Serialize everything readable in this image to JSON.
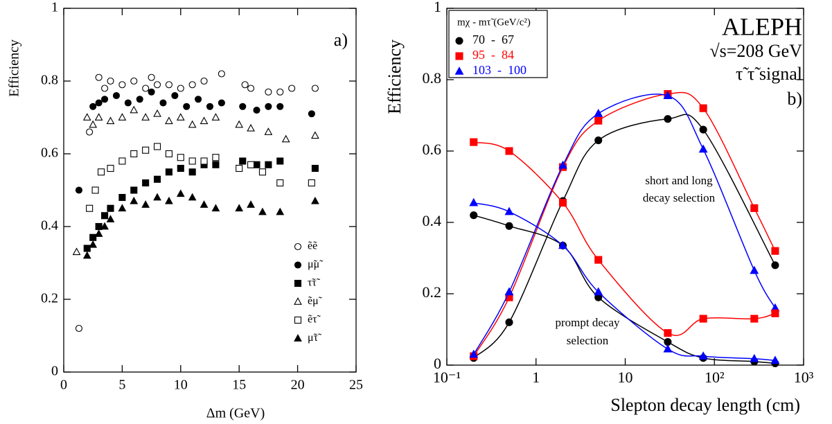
{
  "chart_data": [
    {
      "type": "scatter",
      "xlabel": "Δm (GeV)",
      "ylabel": "Efficiency",
      "panel_label": "a)",
      "xlim": [
        0,
        25
      ],
      "xticks": [
        0,
        5,
        10,
        15,
        20,
        25
      ],
      "ylim": [
        0,
        1
      ],
      "yticks": [
        0,
        0.2,
        0.4,
        0.6,
        0.8,
        1
      ],
      "series": [
        {
          "name": "ẽẽ",
          "marker": "circle",
          "filled": false,
          "color": "#000000",
          "x": [
            1.3,
            2.2,
            3,
            3.5,
            4,
            5,
            6,
            7,
            7.5,
            8,
            9,
            10,
            11,
            12,
            13.5,
            15.5,
            16,
            17.5,
            18.5,
            19.5,
            21.5
          ],
          "values": [
            0.12,
            0.66,
            0.81,
            0.78,
            0.8,
            0.79,
            0.8,
            0.78,
            0.81,
            0.79,
            0.79,
            0.78,
            0.79,
            0.8,
            0.82,
            0.79,
            0.78,
            0.77,
            0.77,
            0.78,
            0.78
          ]
        },
        {
          "name": "μ̃μ̃",
          "marker": "circle",
          "filled": true,
          "color": "#000000",
          "x": [
            1.3,
            2.5,
            3,
            3.5,
            4.5,
            5.5,
            6.5,
            7.5,
            8.5,
            9.5,
            10.5,
            11.5,
            12.5,
            13.5,
            15.3,
            16.5,
            17.5,
            18.5,
            21.2
          ],
          "values": [
            0.5,
            0.73,
            0.74,
            0.75,
            0.76,
            0.74,
            0.75,
            0.77,
            0.74,
            0.76,
            0.73,
            0.75,
            0.73,
            0.74,
            0.73,
            0.72,
            0.73,
            0.73,
            0.71
          ]
        },
        {
          "name": "τ̃τ̃",
          "marker": "square",
          "filled": true,
          "color": "#000000",
          "x": [
            2,
            2.5,
            3,
            3.5,
            4,
            5,
            6,
            7,
            8,
            9,
            10,
            11,
            12,
            13,
            15.3,
            16.5,
            17.5,
            18.5,
            21.5
          ],
          "values": [
            0.34,
            0.37,
            0.4,
            0.43,
            0.45,
            0.48,
            0.5,
            0.52,
            0.53,
            0.55,
            0.56,
            0.55,
            0.57,
            0.57,
            0.58,
            0.57,
            0.57,
            0.58,
            0.56
          ]
        },
        {
          "name": "ẽμ̃",
          "marker": "triangle",
          "filled": false,
          "color": "#000000",
          "x": [
            1.1,
            2,
            2.5,
            3,
            4,
            5,
            6,
            7,
            8,
            9,
            10,
            11,
            12,
            13,
            15,
            16,
            17.5,
            19,
            21.5
          ],
          "values": [
            0.33,
            0.7,
            0.68,
            0.7,
            0.69,
            0.7,
            0.72,
            0.7,
            0.71,
            0.69,
            0.7,
            0.68,
            0.69,
            0.7,
            0.68,
            0.67,
            0.66,
            0.64,
            0.65
          ]
        },
        {
          "name": "ẽτ̃",
          "marker": "square",
          "filled": false,
          "color": "#000000",
          "x": [
            2.2,
            2.7,
            3.2,
            4,
            5,
            6,
            7,
            8,
            9,
            10,
            11,
            12,
            13,
            15,
            16,
            17,
            18.5,
            21.2
          ],
          "values": [
            0.45,
            0.5,
            0.55,
            0.56,
            0.58,
            0.6,
            0.61,
            0.62,
            0.6,
            0.59,
            0.58,
            0.58,
            0.59,
            0.56,
            0.57,
            0.55,
            0.52,
            0.52
          ]
        },
        {
          "name": "μ̃τ̃",
          "marker": "triangle",
          "filled": true,
          "color": "#000000",
          "x": [
            2,
            2.5,
            3,
            3.5,
            4,
            5,
            6,
            7,
            8,
            9,
            10,
            11,
            12,
            13,
            15,
            16,
            17,
            18.5,
            21.5
          ],
          "values": [
            0.32,
            0.35,
            0.38,
            0.4,
            0.42,
            0.45,
            0.47,
            0.46,
            0.48,
            0.47,
            0.49,
            0.48,
            0.46,
            0.45,
            0.45,
            0.46,
            0.44,
            0.44,
            0.47
          ]
        }
      ]
    },
    {
      "type": "line",
      "xlabel": "Slepton decay length (cm)",
      "ylabel": "Efficiency",
      "log_x": true,
      "xlim": [
        0.1,
        1000
      ],
      "xticks": [
        {
          "value": 0.1,
          "label": "10⁻¹"
        },
        1,
        10,
        {
          "value": 100,
          "label": "10²"
        },
        {
          "value": 1000,
          "label": "10³"
        }
      ],
      "ylim": [
        0,
        1
      ],
      "yticks": [
        0,
        0.2,
        0.4,
        0.6,
        0.8,
        1
      ],
      "legend_title": "mχ  -  mτ̃  (GeV/c²)",
      "annotations": [
        "ALEPH",
        "√s=208 GeV",
        "τ̃ τ̃ signal",
        "b)",
        "short and long",
        "decay selection",
        "prompt decay",
        "selection"
      ],
      "series": [
        {
          "name": "70  -  67",
          "color": "#000000",
          "marker": "circle",
          "x": [
            0.2,
            0.5,
            2,
            5,
            30,
            75,
            480
          ],
          "values": [
            0.02,
            0.12,
            0.46,
            0.63,
            0.69,
            0.66,
            0.28
          ]
        },
        {
          "name": "95  -  84",
          "color": "#ff0000",
          "marker": "square",
          "x": [
            0.2,
            0.5,
            2,
            5,
            30,
            75,
            280,
            480
          ],
          "values": [
            0.025,
            0.19,
            0.555,
            0.685,
            0.76,
            0.72,
            0.44,
            0.32
          ]
        },
        {
          "name": "103  -  100",
          "color": "#0000ff",
          "marker": "triangle",
          "x": [
            0.2,
            0.5,
            2,
            5,
            30,
            75,
            280,
            480
          ],
          "values": [
            0.03,
            0.205,
            0.56,
            0.705,
            0.755,
            0.605,
            0.265,
            0.16
          ]
        },
        {
          "color": "#000000",
          "marker": "circle",
          "x": [
            0.2,
            0.5,
            2,
            5,
            30,
            75,
            280,
            480
          ],
          "values": [
            0.42,
            0.39,
            0.335,
            0.19,
            0.065,
            0.02,
            0.01,
            0.005
          ]
        },
        {
          "color": "#ff0000",
          "marker": "square",
          "x": [
            0.2,
            0.5,
            2,
            5,
            30,
            75,
            280,
            480
          ],
          "values": [
            0.625,
            0.6,
            0.455,
            0.295,
            0.09,
            0.13,
            0.13,
            0.145
          ]
        },
        {
          "color": "#0000ff",
          "marker": "triangle",
          "x": [
            0.2,
            0.5,
            2,
            5,
            30,
            75,
            280,
            480
          ],
          "values": [
            0.455,
            0.43,
            0.335,
            0.205,
            0.045,
            0.025,
            0.018,
            0.013
          ]
        }
      ]
    }
  ]
}
